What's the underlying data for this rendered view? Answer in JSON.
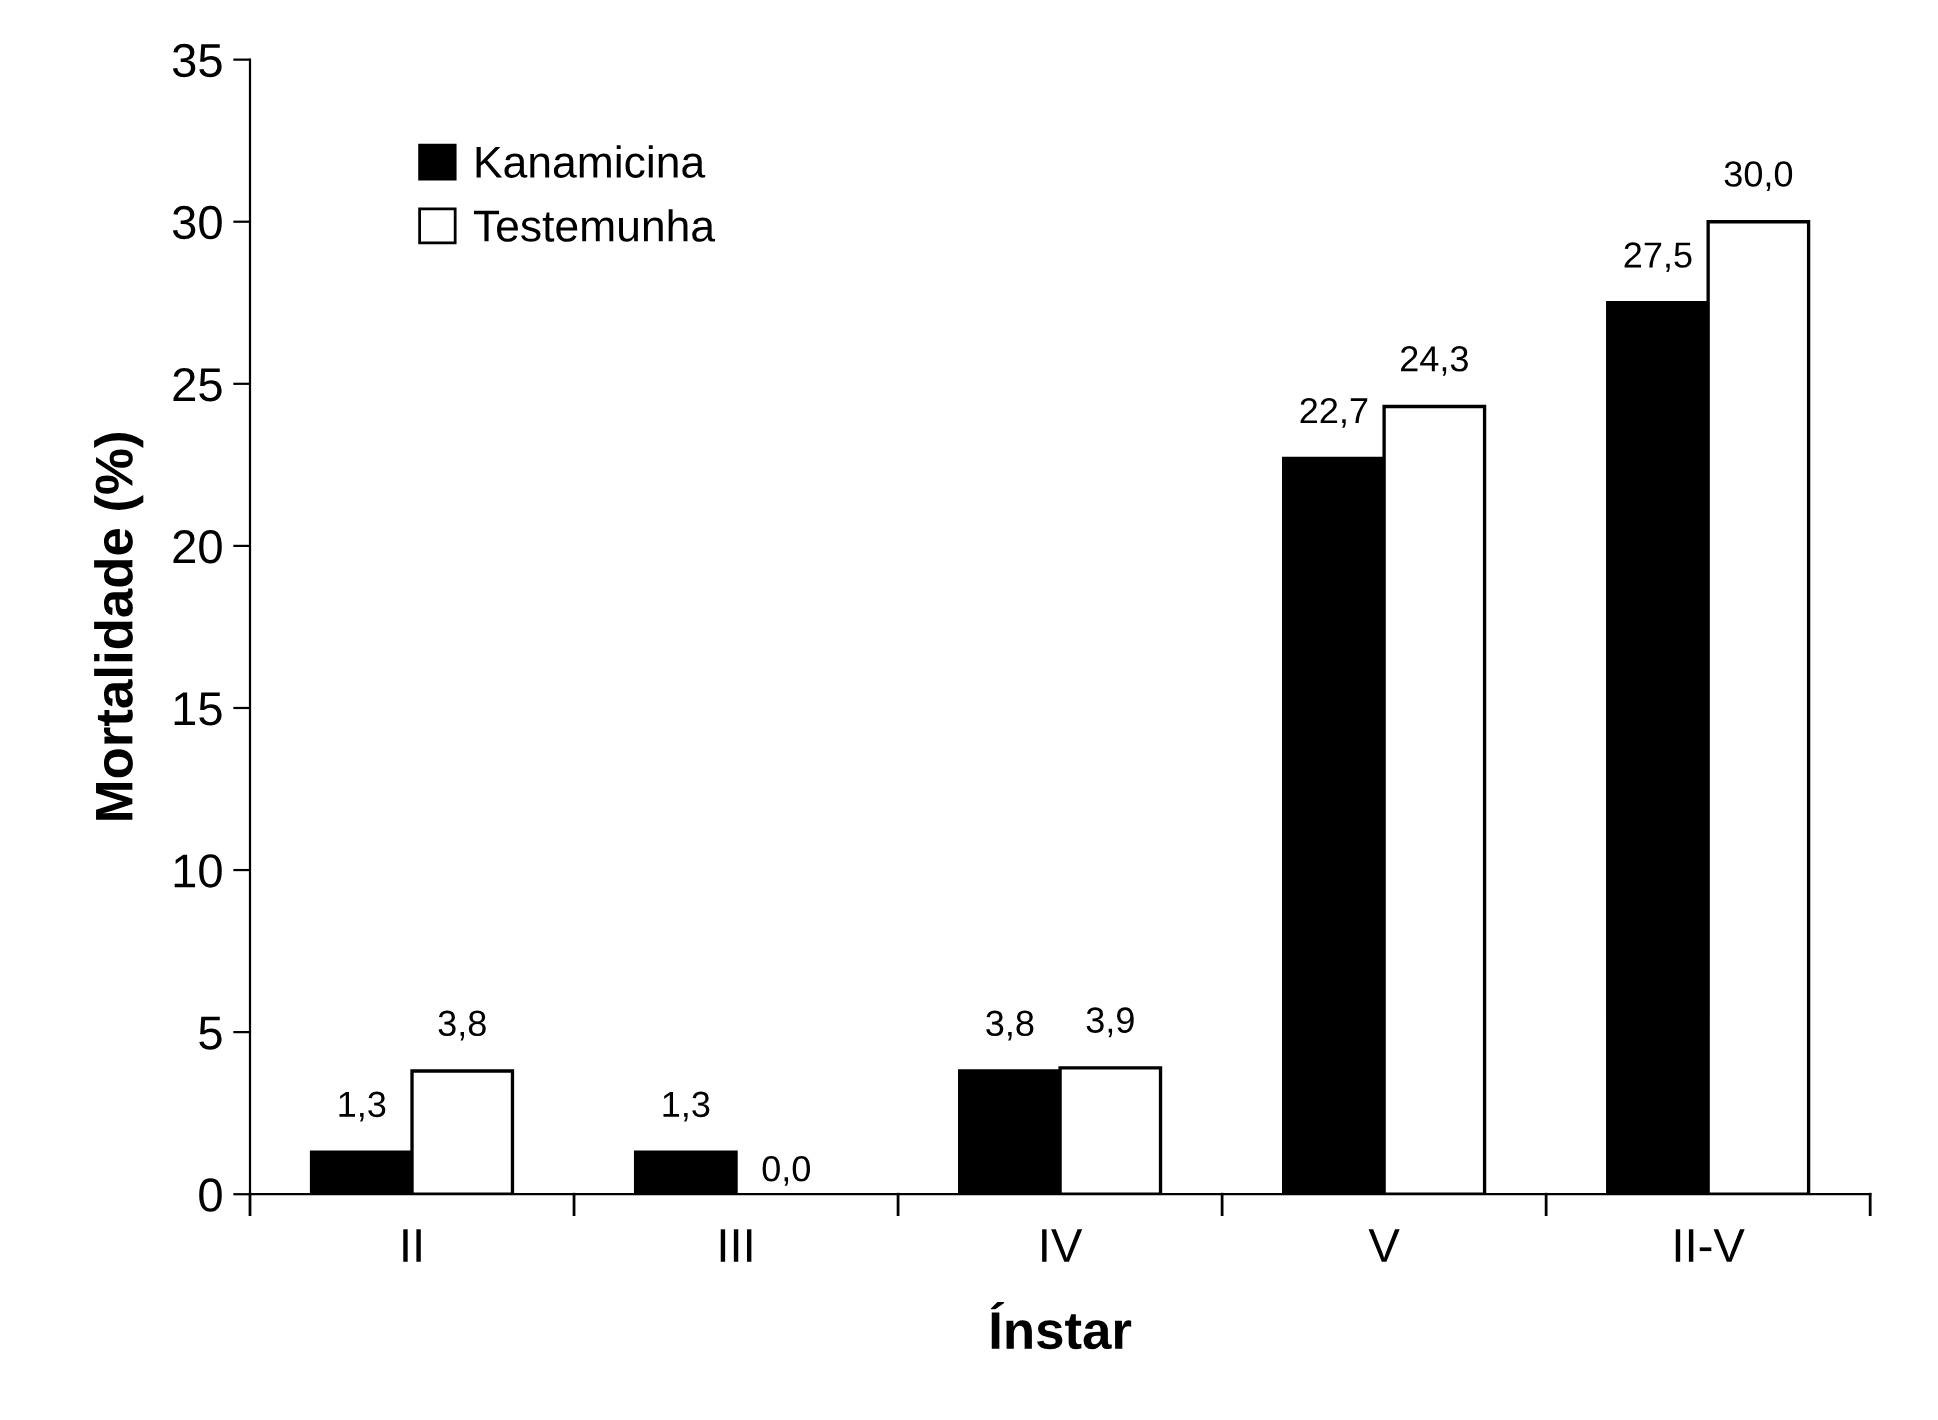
{
  "chart_data": {
    "type": "bar",
    "xlabel": "Ínstar",
    "ylabel": "Mortalidade (%)",
    "categories": [
      "II",
      "III",
      "IV",
      "V",
      "II-V"
    ],
    "series": [
      {
        "name": "Kanamicina",
        "color": "#000000",
        "values": [
          1.3,
          1.3,
          3.8,
          22.7,
          27.5
        ],
        "value_labels": [
          "1,3",
          "1,3",
          "3,8",
          "22,7",
          "27,5"
        ]
      },
      {
        "name": "Testemunha",
        "color": "#ffffff",
        "values": [
          3.8,
          0.0,
          3.9,
          24.3,
          30.0
        ],
        "value_labels": [
          "3,8",
          "0,0",
          "3,9",
          "24,3",
          "30,0"
        ]
      }
    ],
    "ylim": [
      0,
      35
    ],
    "yticks": [
      0,
      5,
      10,
      15,
      20,
      25,
      30,
      35
    ],
    "grid": false,
    "legend": "top left"
  }
}
